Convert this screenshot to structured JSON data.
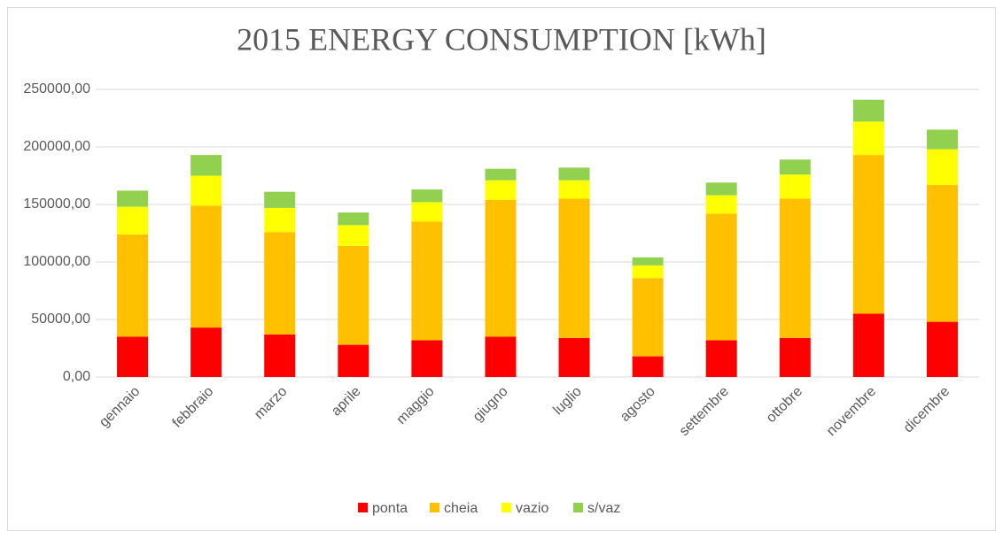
{
  "chart_data": {
    "type": "stacked_bar",
    "title": "2015 ENERGY CONSUMPTION [kWh]",
    "categories": [
      "gennaio",
      "febbraio",
      "marzo",
      "aprile",
      "maggio",
      "giugno",
      "luglio",
      "agosto",
      "settembre",
      "ottobre",
      "novembre",
      "dicembre"
    ],
    "series": [
      {
        "name": "ponta",
        "color": "#ff0000",
        "values": [
          35000,
          43000,
          37000,
          28000,
          32000,
          35000,
          34000,
          18000,
          32000,
          34000,
          55000,
          48000
        ]
      },
      {
        "name": "cheia",
        "color": "#ffc000",
        "values": [
          89000,
          106000,
          89000,
          86000,
          103000,
          119000,
          121000,
          68000,
          110000,
          121000,
          138000,
          119000
        ]
      },
      {
        "name": "vazio",
        "color": "#ffff00",
        "values": [
          24000,
          26000,
          21000,
          18000,
          17000,
          17000,
          16000,
          11000,
          16000,
          21000,
          29000,
          31000
        ]
      },
      {
        "name": "s/vaz",
        "color": "#92d050",
        "values": [
          14000,
          18000,
          14000,
          11000,
          11000,
          10000,
          11000,
          7000,
          11000,
          13000,
          19000,
          17000
        ]
      }
    ],
    "ylim": [
      0,
      250000
    ],
    "yticks": [
      {
        "value": 0,
        "label": "0,00"
      },
      {
        "value": 50000,
        "label": "50000,00"
      },
      {
        "value": 100000,
        "label": "100000,00"
      },
      {
        "value": 150000,
        "label": "150000,00"
      },
      {
        "value": 200000,
        "label": "200000,00"
      },
      {
        "value": 250000,
        "label": "250000,00"
      }
    ],
    "grid": true,
    "legend": "bottom"
  }
}
